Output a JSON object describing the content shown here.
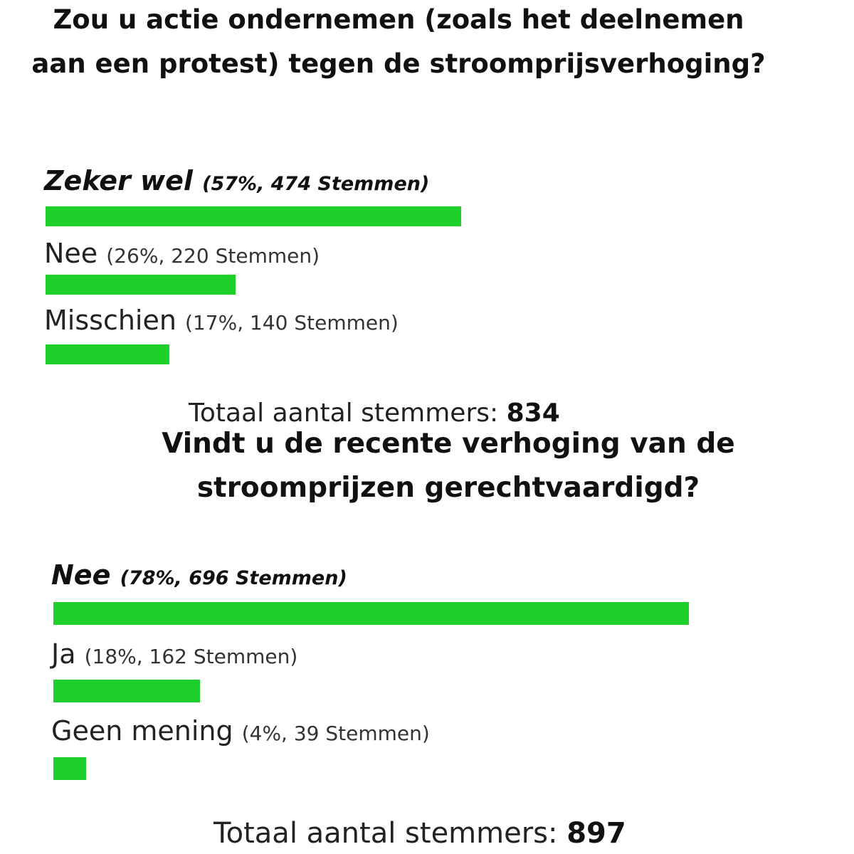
{
  "polls": [
    {
      "question": "Zou u actie ondernemen (zoals het deelnemen aan een protest) tegen de stroomprijsverhoging?",
      "options": [
        {
          "label": "Zeker wel",
          "detail": "(57%, 474 Stemmen)",
          "percent": 57,
          "votes": 474
        },
        {
          "label": "Nee",
          "detail": "(26%, 220 Stemmen)",
          "percent": 26,
          "votes": 220
        },
        {
          "label": "Misschien",
          "detail": "(17%, 140 Stemmen)",
          "percent": 17,
          "votes": 140
        }
      ],
      "total_label": "Totaal aantal stemmers:",
      "total_value": "834"
    },
    {
      "question": "Vindt u de recente verhoging van de stroomprijzen gerechtvaardigd?",
      "options": [
        {
          "label": "Nee",
          "detail": "(78%, 696 Stemmen)",
          "percent": 78,
          "votes": 696
        },
        {
          "label": "Ja",
          "detail": "(18%, 162 Stemmen)",
          "percent": 18,
          "votes": 162
        },
        {
          "label": "Geen mening",
          "detail": "(4%, 39 Stemmen)",
          "percent": 4,
          "votes": 39
        }
      ],
      "total_label": "Totaal aantal stemmers:",
      "total_value": "897"
    }
  ],
  "colors": {
    "bar": "#1ed02a",
    "text": "#1a1a1a"
  },
  "chart_data": [
    {
      "type": "bar",
      "orientation": "horizontal",
      "title": "Zou u actie ondernemen (zoals het deelnemen aan een protest) tegen de stroomprijsverhoging?",
      "categories": [
        "Zeker wel",
        "Nee",
        "Misschien"
      ],
      "values": [
        57,
        26,
        17
      ],
      "votes": [
        474,
        220,
        140
      ],
      "total": 834,
      "unit": "%",
      "grid": false
    },
    {
      "type": "bar",
      "orientation": "horizontal",
      "title": "Vindt u de recente verhoging van de stroomprijzen gerechtvaardigd?",
      "categories": [
        "Nee",
        "Ja",
        "Geen mening"
      ],
      "values": [
        78,
        18,
        4
      ],
      "votes": [
        696,
        162,
        39
      ],
      "total": 897,
      "unit": "%",
      "grid": false
    }
  ]
}
